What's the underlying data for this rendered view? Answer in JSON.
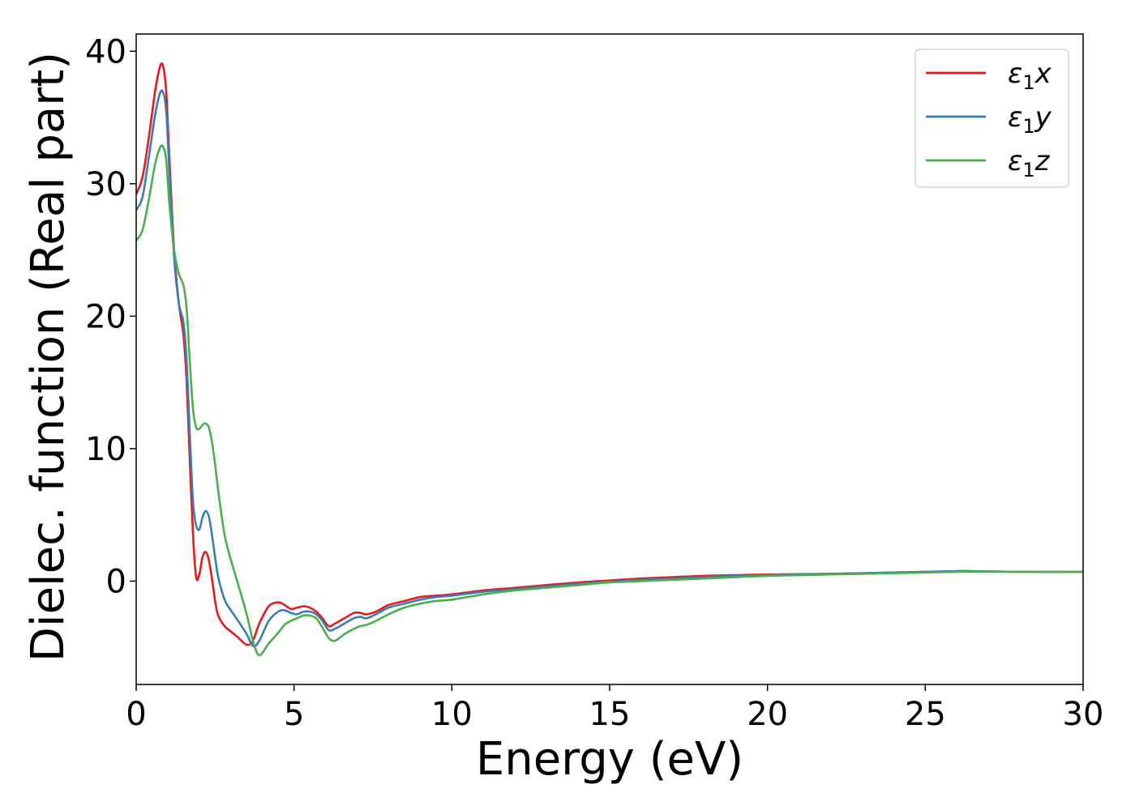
{
  "chart_data": {
    "type": "line",
    "xlabel": "Energy (eV)",
    "ylabel": "Dielec. function (Real part)",
    "xlim": [
      0,
      30
    ],
    "ylim": [
      -7.8,
      41.3
    ],
    "xticks": [
      0,
      5,
      10,
      15,
      20,
      25,
      30
    ],
    "yticks": [
      0,
      10,
      20,
      30,
      40
    ],
    "grid": false,
    "legend_position": "top-right",
    "series": [
      {
        "name": "ε₁x",
        "legend_base": "ε",
        "legend_sub": "1",
        "legend_suffix": "x",
        "color": "#e41a1c",
        "x": [
          0,
          0.2,
          0.4,
          0.6,
          0.75,
          0.85,
          0.95,
          1.05,
          1.2,
          1.35,
          1.5,
          1.6,
          1.7,
          1.8,
          1.9,
          2.0,
          2.1,
          2.2,
          2.3,
          2.4,
          2.5,
          2.6,
          2.8,
          3.0,
          3.2,
          3.5,
          3.7,
          3.9,
          4.2,
          4.5,
          4.7,
          4.9,
          5.1,
          5.3,
          5.5,
          5.7,
          5.9,
          6.1,
          6.3,
          6.6,
          6.9,
          7.1,
          7.3,
          7.6,
          8.0,
          8.5,
          9.0,
          9.5,
          10.0,
          11.0,
          12.0,
          13.0,
          14.0,
          15.0,
          16.0,
          17.0,
          18.0,
          19.0,
          20.0,
          22.0,
          24.0,
          26.0,
          26.5,
          28.0,
          30.0
        ],
        "y": [
          29.2,
          30.5,
          33.5,
          37.0,
          38.8,
          38.9,
          37.0,
          32.0,
          25.0,
          21.0,
          18.5,
          15.0,
          9.0,
          3.5,
          0.3,
          0.5,
          1.8,
          2.2,
          1.6,
          0.2,
          -1.5,
          -2.6,
          -3.4,
          -3.8,
          -4.2,
          -4.8,
          -4.5,
          -3.2,
          -1.9,
          -1.6,
          -1.8,
          -2.1,
          -2.0,
          -1.9,
          -2.0,
          -2.3,
          -2.8,
          -3.4,
          -3.2,
          -2.8,
          -2.4,
          -2.4,
          -2.5,
          -2.3,
          -1.8,
          -1.5,
          -1.2,
          -1.1,
          -1.0,
          -0.7,
          -0.5,
          -0.3,
          -0.1,
          0.05,
          0.2,
          0.3,
          0.4,
          0.45,
          0.5,
          0.55,
          0.65,
          0.75,
          0.75,
          0.7,
          0.7
        ]
      },
      {
        "name": "ε₁y",
        "legend_base": "ε",
        "legend_sub": "1",
        "legend_suffix": "y",
        "color": "#377eb8",
        "x": [
          0,
          0.2,
          0.4,
          0.6,
          0.75,
          0.85,
          0.95,
          1.05,
          1.2,
          1.35,
          1.5,
          1.6,
          1.7,
          1.8,
          1.9,
          2.0,
          2.1,
          2.2,
          2.3,
          2.4,
          2.5,
          2.6,
          2.8,
          3.0,
          3.2,
          3.5,
          3.7,
          3.9,
          4.2,
          4.5,
          4.7,
          4.9,
          5.1,
          5.3,
          5.5,
          5.7,
          5.9,
          6.1,
          6.3,
          6.6,
          6.9,
          7.1,
          7.3,
          7.6,
          8.0,
          8.5,
          9.0,
          9.5,
          10.0,
          11.0,
          12.0,
          13.0,
          14.0,
          15.0,
          16.0,
          17.0,
          18.0,
          19.0,
          20.0,
          22.0,
          24.0,
          26.0,
          26.5,
          28.0,
          30.0
        ],
        "y": [
          28.0,
          29.0,
          32.0,
          35.2,
          36.8,
          36.9,
          35.5,
          31.0,
          24.5,
          21.0,
          19.5,
          16.5,
          11.0,
          6.0,
          4.2,
          3.9,
          4.8,
          5.3,
          4.9,
          3.5,
          1.8,
          0.3,
          -1.4,
          -2.2,
          -2.9,
          -4.0,
          -4.9,
          -4.5,
          -3.0,
          -2.3,
          -2.2,
          -2.4,
          -2.5,
          -2.3,
          -2.3,
          -2.5,
          -3.0,
          -3.7,
          -3.6,
          -3.2,
          -2.8,
          -2.7,
          -2.8,
          -2.5,
          -2.0,
          -1.7,
          -1.4,
          -1.2,
          -1.1,
          -0.8,
          -0.6,
          -0.4,
          -0.2,
          -0.05,
          0.1,
          0.2,
          0.3,
          0.4,
          0.45,
          0.55,
          0.65,
          0.75,
          0.75,
          0.7,
          0.7
        ]
      },
      {
        "name": "ε₁z",
        "legend_base": "ε",
        "legend_sub": "1",
        "legend_suffix": "z",
        "color": "#4daf4a",
        "x": [
          0,
          0.2,
          0.4,
          0.6,
          0.75,
          0.85,
          0.95,
          1.05,
          1.2,
          1.35,
          1.5,
          1.6,
          1.7,
          1.8,
          1.9,
          2.0,
          2.1,
          2.2,
          2.3,
          2.4,
          2.5,
          2.6,
          2.8,
          3.0,
          3.2,
          3.5,
          3.7,
          3.9,
          4.2,
          4.5,
          4.7,
          4.9,
          5.1,
          5.3,
          5.5,
          5.7,
          5.9,
          6.1,
          6.3,
          6.6,
          6.9,
          7.1,
          7.3,
          7.6,
          8.0,
          8.5,
          9.0,
          9.5,
          10.0,
          11.0,
          12.0,
          13.0,
          14.0,
          15.0,
          16.0,
          17.0,
          18.0,
          19.0,
          20.0,
          22.0,
          24.0,
          26.0,
          26.5,
          28.0,
          30.0
        ],
        "y": [
          25.7,
          26.5,
          28.8,
          31.5,
          32.7,
          32.8,
          31.8,
          28.5,
          25.0,
          23.2,
          22.3,
          20.5,
          16.5,
          13.0,
          11.6,
          11.5,
          11.8,
          11.9,
          11.6,
          10.5,
          8.8,
          6.8,
          3.5,
          1.6,
          0.0,
          -2.5,
          -4.5,
          -5.6,
          -4.7,
          -3.9,
          -3.3,
          -3.0,
          -2.8,
          -2.6,
          -2.6,
          -2.8,
          -3.5,
          -4.3,
          -4.5,
          -4.0,
          -3.6,
          -3.4,
          -3.3,
          -3.0,
          -2.5,
          -2.0,
          -1.7,
          -1.5,
          -1.4,
          -1.0,
          -0.7,
          -0.5,
          -0.3,
          -0.1,
          0.0,
          0.1,
          0.2,
          0.3,
          0.4,
          0.5,
          0.6,
          0.7,
          0.72,
          0.7,
          0.7
        ]
      }
    ]
  }
}
